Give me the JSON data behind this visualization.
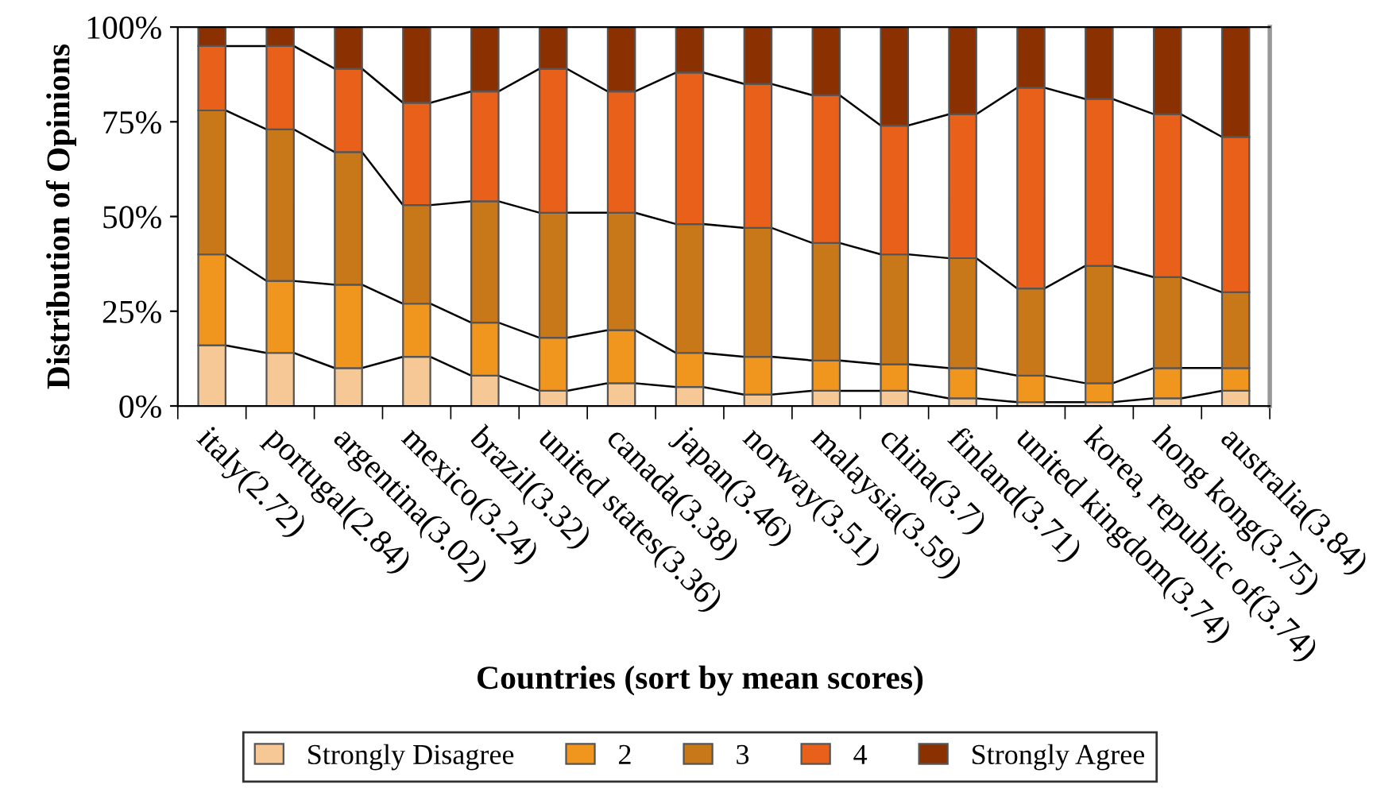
{
  "chart_data": {
    "type": "bar",
    "stacked": true,
    "xlabel": "Countries (sort by mean scores)",
    "ylabel": "Distribution of Opinions",
    "categories": [
      "italy(2.72)",
      "portugal(2.84)",
      "argentina(3.02)",
      "mexico(3.24)",
      "brazil(3.32)",
      "united states(3.36)",
      "canada(3.38)",
      "japan(3.46)",
      "norway(3.51)",
      "malaysia(3.59)",
      "china(3.7)",
      "finland(3.71)",
      "united kingdom(3.74)",
      "korea, republic of(3.74)",
      "hong kong(3.75)",
      "australia(3.84)"
    ],
    "series": [
      {
        "name": "Strongly Disagree",
        "color": "#f5c896",
        "values": [
          16,
          14,
          10,
          13,
          8,
          4,
          6,
          5,
          3,
          4,
          4,
          2,
          1,
          1,
          2,
          4
        ]
      },
      {
        "name": "2",
        "color": "#f0961e",
        "values": [
          24,
          19,
          22,
          14,
          14,
          14,
          14,
          9,
          10,
          8,
          7,
          8,
          7,
          5,
          8,
          6
        ]
      },
      {
        "name": "3",
        "color": "#c87818",
        "values": [
          38,
          40,
          35,
          26,
          32,
          33,
          31,
          34,
          34,
          31,
          29,
          29,
          23,
          31,
          24,
          20
        ]
      },
      {
        "name": "4",
        "color": "#e8601a",
        "values": [
          17,
          22,
          22,
          27,
          29,
          38,
          32,
          40,
          38,
          39,
          34,
          38,
          53,
          44,
          43,
          41
        ]
      },
      {
        "name": "Strongly Agree",
        "color": "#8b3000",
        "values": [
          5,
          5,
          11,
          20,
          17,
          11,
          17,
          12,
          15,
          18,
          26,
          23,
          16,
          19,
          23,
          29
        ]
      }
    ],
    "ylim": [
      0,
      100
    ],
    "yticks": [
      {
        "value": 0,
        "label": "0%"
      },
      {
        "value": 25,
        "label": "25%"
      },
      {
        "value": 50,
        "label": "50%"
      },
      {
        "value": 75,
        "label": "75%"
      },
      {
        "value": 100,
        "label": "100%"
      }
    ],
    "grid": false,
    "legend": "bottom"
  }
}
